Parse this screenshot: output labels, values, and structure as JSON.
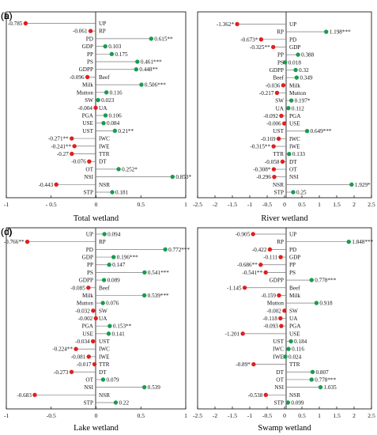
{
  "chart_data": [
    {
      "type": "lollipop",
      "panel": "(a)",
      "xlabel": "Total wetland",
      "xlim": [
        -1,
        1
      ],
      "xticks": [
        -1,
        -0.5,
        0,
        0.5,
        1
      ],
      "xtick_labels": [
        "-1",
        "- 0.5",
        "0",
        "0.5",
        "1"
      ],
      "colors": {
        "positive": "#1a9b50",
        "negative": "#e02020"
      },
      "items": [
        {
          "var": "UP",
          "value": -0.785,
          "label": "-0.785"
        },
        {
          "var": "RP",
          "value": -0.061,
          "label": "-0.061"
        },
        {
          "var": "PD",
          "value": 0.615,
          "label": "0.615**"
        },
        {
          "var": "GDP",
          "value": 0.103,
          "label": "0.103"
        },
        {
          "var": "PP",
          "value": 0.175,
          "label": "0.175"
        },
        {
          "var": "PS",
          "value": 0.461,
          "label": "0.461***"
        },
        {
          "var": "GDPP",
          "value": 0.448,
          "label": "0.448**"
        },
        {
          "var": "Beef",
          "value": -0.096,
          "label": "-0.096"
        },
        {
          "var": "Milk",
          "value": 0.506,
          "label": "0.506***"
        },
        {
          "var": "Mutton",
          "value": 0.116,
          "label": "0.116"
        },
        {
          "var": "SW",
          "value": 0.023,
          "label": "0.023"
        },
        {
          "var": "UA",
          "value": -0.004,
          "label": "-0.004"
        },
        {
          "var": "PGA",
          "value": 0.106,
          "label": "0.106"
        },
        {
          "var": "USE",
          "value": 0.084,
          "label": "0.084"
        },
        {
          "var": "UST",
          "value": 0.21,
          "label": "0.21**"
        },
        {
          "var": "IWC",
          "value": -0.271,
          "label": "-0.271**"
        },
        {
          "var": "IWE",
          "value": -0.241,
          "label": "-0.241**"
        },
        {
          "var": "TTR",
          "value": -0.27,
          "label": "-0.27"
        },
        {
          "var": "DT",
          "value": -0.076,
          "label": "-0.076"
        },
        {
          "var": "OT",
          "value": 0.252,
          "label": "0.252*"
        },
        {
          "var": "NSI",
          "value": 0.853,
          "label": "0.853*"
        },
        {
          "var": "NSR",
          "value": -0.443,
          "label": "-0.443"
        },
        {
          "var": "STP",
          "value": 0.181,
          "label": "0.181"
        }
      ]
    },
    {
      "type": "lollipop",
      "panel": "(b)",
      "xlabel": "River wetland",
      "xlim": [
        -2.5,
        2.5
      ],
      "xticks": [
        -2.5,
        -2,
        -1.5,
        -1,
        -0.5,
        0,
        0.5,
        1,
        1.5,
        2,
        2.5
      ],
      "xtick_labels": [
        "-2.5",
        "-2",
        "-1.5",
        "-1",
        "-0.5",
        "0",
        "0.5",
        "1",
        "1.5",
        "2",
        "2.5"
      ],
      "colors": {
        "positive": "#1a9b50",
        "negative": "#e02020"
      },
      "items": [
        {
          "var": "UP",
          "value": -1.362,
          "label": "-1.362*"
        },
        {
          "var": "RP",
          "value": 1.198,
          "label": "1.198***"
        },
        {
          "var": "PD",
          "value": -0.673,
          "label": "-0.673*"
        },
        {
          "var": "GDP",
          "value": -0.325,
          "label": "-0.325**"
        },
        {
          "var": "PP",
          "value": 0.388,
          "label": "0.388"
        },
        {
          "var": "PS",
          "value": 0.018,
          "label": "0.018"
        },
        {
          "var": "GDPP",
          "value": 0.32,
          "label": "0.32"
        },
        {
          "var": "Beef",
          "value": 0.349,
          "label": "0.349"
        },
        {
          "var": "Milk",
          "value": -0.036,
          "label": "-0.036"
        },
        {
          "var": "Mutton",
          "value": -0.217,
          "label": "-0.217"
        },
        {
          "var": "SW",
          "value": 0.197,
          "label": "0.197*"
        },
        {
          "var": "UA",
          "value": 0.112,
          "label": "0.112"
        },
        {
          "var": "PGA",
          "value": -0.092,
          "label": "-0.092"
        },
        {
          "var": "USE",
          "value": -0.006,
          "label": "-0.006"
        },
        {
          "var": "UST",
          "value": 0.649,
          "label": "0.649***"
        },
        {
          "var": "IWC",
          "value": -0.169,
          "label": "-0.169"
        },
        {
          "var": "IWE",
          "value": -0.315,
          "label": "-0.315**"
        },
        {
          "var": "TTR",
          "value": 0.133,
          "label": "0.133"
        },
        {
          "var": "DT",
          "value": -0.058,
          "label": "-0.058"
        },
        {
          "var": "OT",
          "value": -0.308,
          "label": "-0.308*"
        },
        {
          "var": "NSI",
          "value": -0.296,
          "label": "-0.296"
        },
        {
          "var": "NSR",
          "value": 1.929,
          "label": "1.929*"
        },
        {
          "var": "STP",
          "value": 0.25,
          "label": "0.25"
        }
      ]
    },
    {
      "type": "lollipop",
      "panel": "(c)",
      "xlabel": "Lake wetland",
      "xlim": [
        -1,
        1
      ],
      "xticks": [
        -1,
        -0.5,
        0,
        0.5,
        1
      ],
      "xtick_labels": [
        "-1",
        "-0.5",
        "0",
        "0.5",
        "1"
      ],
      "colors": {
        "positive": "#1a9b50",
        "negative": "#e02020"
      },
      "items": [
        {
          "var": "UP",
          "value": 0.094,
          "label": "0.094"
        },
        {
          "var": "RP",
          "value": -0.766,
          "label": "-0.766**"
        },
        {
          "var": "PD",
          "value": 0.772,
          "label": "0.772***"
        },
        {
          "var": "GDP",
          "value": 0.196,
          "label": "0.196***"
        },
        {
          "var": "PP",
          "value": 0.147,
          "label": "0.147"
        },
        {
          "var": "PS",
          "value": 0.541,
          "label": "0.541***"
        },
        {
          "var": "GDPP",
          "value": 0.089,
          "label": "0.089"
        },
        {
          "var": "Beef",
          "value": -0.085,
          "label": "-0.085"
        },
        {
          "var": "Milk",
          "value": 0.539,
          "label": "0.539***"
        },
        {
          "var": "Mutton",
          "value": 0.076,
          "label": "0.076"
        },
        {
          "var": "SW",
          "value": -0.032,
          "label": "-0.032"
        },
        {
          "var": "UA",
          "value": -0.002,
          "label": "-0.002"
        },
        {
          "var": "PGA",
          "value": 0.153,
          "label": "0.153**"
        },
        {
          "var": "USE",
          "value": 0.141,
          "label": "0.141"
        },
        {
          "var": "UST",
          "value": -0.034,
          "label": "-0.034"
        },
        {
          "var": "IWC",
          "value": -0.224,
          "label": "-0.224**"
        },
        {
          "var": "IWE",
          "value": -0.081,
          "label": "-0.081"
        },
        {
          "var": "TTR",
          "value": -0.017,
          "label": "-0.017"
        },
        {
          "var": "DT",
          "value": -0.273,
          "label": "-0.273"
        },
        {
          "var": "OT",
          "value": 0.079,
          "label": "0.079"
        },
        {
          "var": "NSI",
          "value": 0.539,
          "label": "0.539"
        },
        {
          "var": "NSR",
          "value": -0.683,
          "label": "-0.683"
        },
        {
          "var": "STP",
          "value": 0.22,
          "label": "0.22"
        }
      ]
    },
    {
      "type": "lollipop",
      "panel": "(d)",
      "xlabel": "Swamp wetland",
      "xlim": [
        -2.5,
        2.5
      ],
      "xticks": [
        -2.5,
        -2,
        -1.5,
        -1,
        -0.5,
        0,
        0.5,
        1,
        1.5,
        2,
        2.5
      ],
      "xtick_labels": [
        "-2.5",
        "-2",
        "-1.5",
        "-1",
        "-0.5",
        "0",
        "0.5",
        "1",
        "1.5",
        "2",
        "2.5"
      ],
      "colors": {
        "positive": "#1a9b50",
        "negative": "#e02020"
      },
      "items": [
        {
          "var": "UP",
          "value": -0.905,
          "label": "-0.905"
        },
        {
          "var": "RP",
          "value": 1.848,
          "label": "1.848***"
        },
        {
          "var": "PD",
          "value": -0.422,
          "label": "-0.422"
        },
        {
          "var": "GDP",
          "value": -0.111,
          "label": "-0.111"
        },
        {
          "var": "PP",
          "value": -0.686,
          "label": "-0.686**"
        },
        {
          "var": "PS",
          "value": -0.541,
          "label": "-0.541**"
        },
        {
          "var": "GDPP",
          "value": 0.778,
          "label": "0.778***"
        },
        {
          "var": "Beef",
          "value": -1.145,
          "label": "-1.145"
        },
        {
          "var": "Milk",
          "value": -0.159,
          "label": "-0.159"
        },
        {
          "var": "Mutton",
          "value": 0.918,
          "label": "0.918"
        },
        {
          "var": "SW",
          "value": -0.002,
          "label": "-0.002"
        },
        {
          "var": "UA",
          "value": -0.118,
          "label": "-0.118"
        },
        {
          "var": "PGA",
          "value": -0.093,
          "label": "-0.093"
        },
        {
          "var": "USE",
          "value": -1.201,
          "label": "-1.201"
        },
        {
          "var": "UST",
          "value": 0.184,
          "label": "0.184"
        },
        {
          "var": "IWC",
          "value": 0.116,
          "label": "0.116"
        },
        {
          "var": "IWE",
          "value": 0.024,
          "label": "0.024"
        },
        {
          "var": "TTR",
          "value": -0.89,
          "label": "-0.89*"
        },
        {
          "var": "DT",
          "value": 0.807,
          "label": "0.807"
        },
        {
          "var": "OT",
          "value": 0.778,
          "label": "0.778***"
        },
        {
          "var": "NSI",
          "value": 1.035,
          "label": "1.035"
        },
        {
          "var": "NSR",
          "value": -0.538,
          "label": "-0.538"
        },
        {
          "var": "STP",
          "value": 0.099,
          "label": "0.099"
        }
      ]
    }
  ]
}
